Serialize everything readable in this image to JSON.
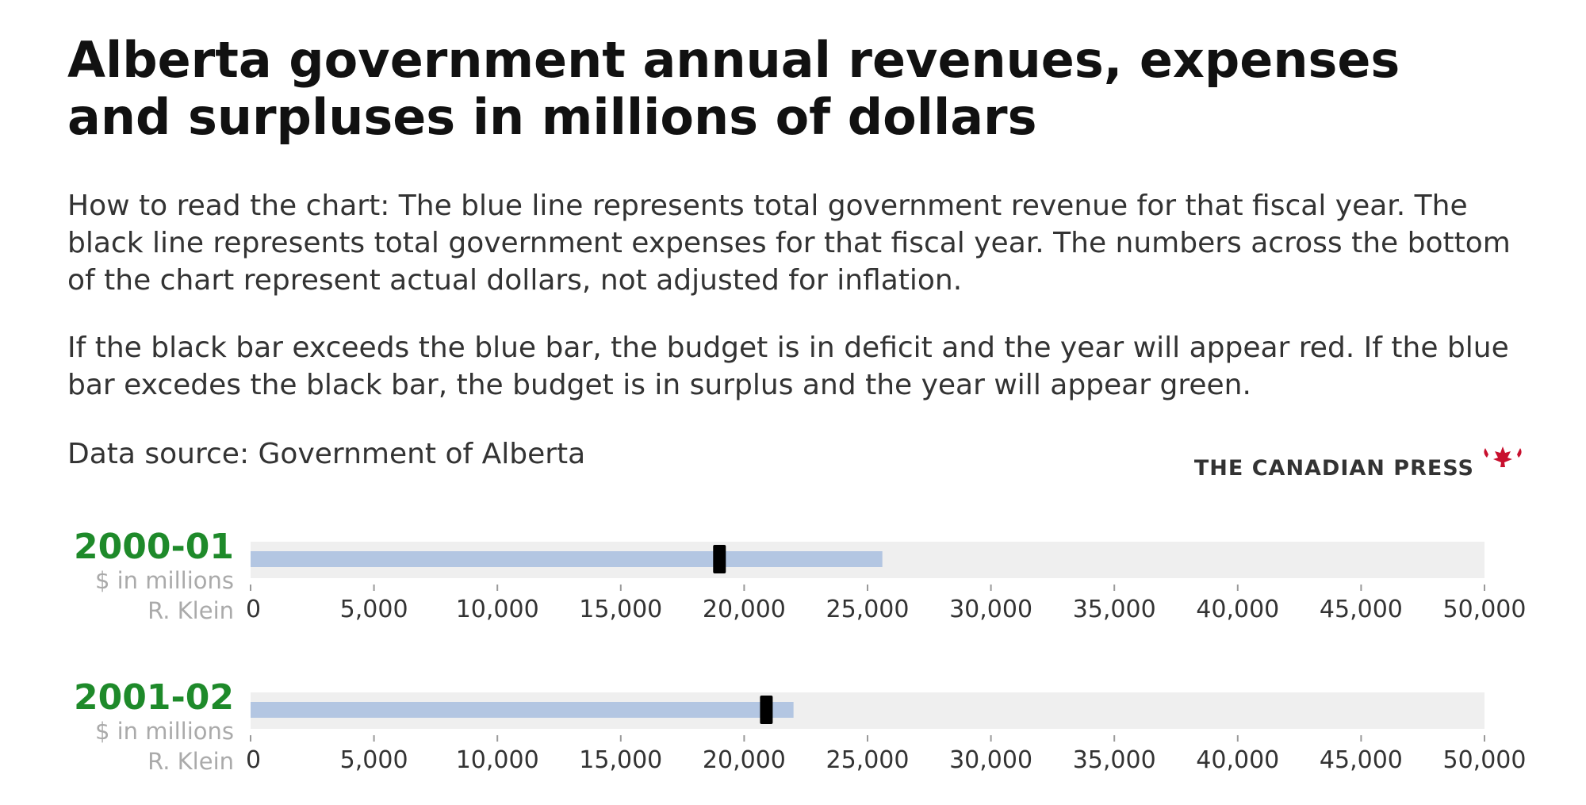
{
  "title": "Alberta government annual revenues, expenses and surpluses in millions of dollars",
  "intro": "How to read the chart: The blue line represents total government revenue for that fiscal year. The black line represents total government expenses for that fiscal year. The numbers across the bottom of the chart represent actual dollars, not adjusted for inflation.",
  "rule": "If the black bar exceeds the blue bar, the budget is in deficit and the year will appear red. If the blue bar excedes the black bar, the budget is in surplus and the year will appear green.",
  "source": "Data source: Government of Alberta",
  "press": {
    "name": "THE CANADIAN PRESS",
    "logo_icon": "canadian-press-maple-leaf-icon"
  },
  "colors": {
    "revenue": "#b3c6e2",
    "expense": "#000000",
    "track": "#efefef",
    "surplus": "#1e8a2a",
    "deficit": "#c8102e"
  },
  "chart_data": {
    "type": "bar",
    "xlim": [
      0,
      50000
    ],
    "ticks": [
      "0",
      "5,000",
      "10,000",
      "15,000",
      "20,000",
      "25,000",
      "30,000",
      "35,000",
      "40,000",
      "45,000",
      "50,000"
    ],
    "tick_values": [
      0,
      5000,
      10000,
      15000,
      20000,
      25000,
      30000,
      35000,
      40000,
      45000,
      50000
    ],
    "series_names": [
      "revenue",
      "expenses"
    ],
    "rows": [
      {
        "year": "2000-01",
        "unit": "$ in millions",
        "premier": "R. Klein",
        "revenue": 25600,
        "expenses": 19000,
        "status": "surplus"
      },
      {
        "year": "2001-02",
        "unit": "$ in millions",
        "premier": "R. Klein",
        "revenue": 22000,
        "expenses": 20900,
        "status": "surplus"
      }
    ]
  }
}
